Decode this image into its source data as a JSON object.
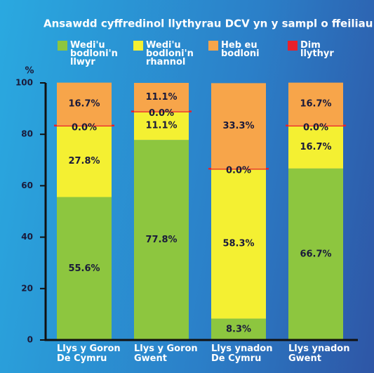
{
  "chart_data": {
    "type": "stacked_bar",
    "title": "Ansawdd cyffredinol llythyrau DCV yn y sampl o ffeiliau",
    "ylabel": "%",
    "categories": [
      "Llys y Goron De Cymru",
      "Llys y Goron Gwent",
      "Llys ynadon De Cymru",
      "Llys ynadon Gwent"
    ],
    "series": [
      {
        "name": "Wedi'u bodloni'n llwyr",
        "color": "#8dc63f",
        "values": [
          55.6,
          77.8,
          8.3,
          66.7
        ],
        "value_labels": [
          "55.6%",
          "77.8%",
          "8.3%",
          "66.7%"
        ]
      },
      {
        "name": "Wedi'u bodloni'n rhannol",
        "color": "#f4f032",
        "values": [
          27.8,
          11.1,
          58.3,
          16.7
        ],
        "value_labels": [
          "27.8%",
          "11.1%",
          "58.3%",
          "16.7%"
        ]
      },
      {
        "name": "Dim llythyr",
        "color": "#e8202a",
        "values": [
          0,
          0,
          0,
          0
        ],
        "value_labels": [
          "0.0%",
          "0.0%",
          "0.0%",
          "0.0%"
        ]
      },
      {
        "name": "Heb eu bodloni",
        "color": "#f7a54a",
        "values": [
          16.7,
          11.1,
          33.3,
          16.7
        ],
        "value_labels": [
          "16.7%",
          "11.1%",
          "33.3%",
          "16.7%"
        ]
      }
    ],
    "legend_order": [
      0,
      1,
      3,
      2
    ],
    "ylim": [
      0,
      100
    ],
    "yticks": [
      0,
      20,
      40,
      60,
      80,
      100
    ]
  }
}
